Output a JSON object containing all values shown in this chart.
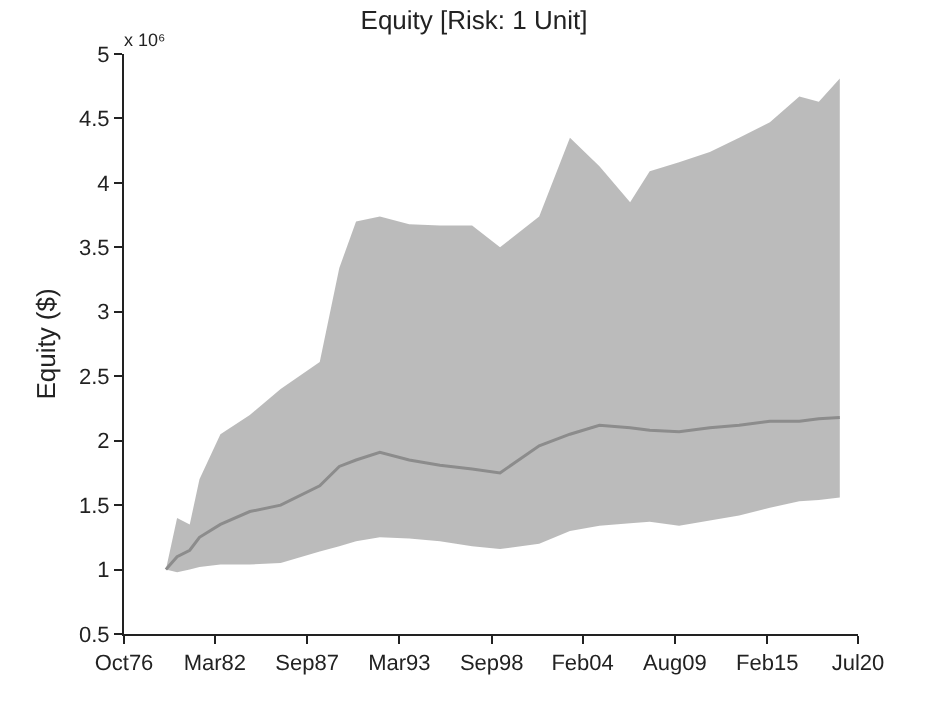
{
  "chart_data": {
    "type": "line",
    "title": "Equity [Risk: 1 Unit]",
    "ylabel": "Equity ($)",
    "annotations": [
      "x 10⁶"
    ],
    "x": [
      "1979-04",
      "1979-12",
      "1980-09",
      "1981-04",
      "1982-07",
      "1984-04",
      "1986-02",
      "1988-06",
      "1989-08",
      "1990-08",
      "1992-01",
      "1993-10",
      "1995-08",
      "1997-07",
      "1999-03",
      "2001-07",
      "2003-05",
      "2005-02",
      "2006-12",
      "2008-02",
      "2009-11",
      "2011-09",
      "2013-06",
      "2015-04",
      "2017-01",
      "2018-03",
      "2019-06"
    ],
    "series": [
      {
        "color": "#8c8c8c",
        "values": [
          1.0,
          1.1,
          1.15,
          1.25,
          1.35,
          1.45,
          1.5,
          1.65,
          1.8,
          1.85,
          1.91,
          1.85,
          1.81,
          1.78,
          1.75,
          1.96,
          2.05,
          2.12,
          2.1,
          2.08,
          2.07,
          2.1,
          2.12,
          2.15,
          2.15,
          2.17,
          2.18
        ],
        "lower": [
          1.0,
          0.98,
          1.0,
          1.02,
          1.04,
          1.04,
          1.05,
          1.14,
          1.18,
          1.22,
          1.25,
          1.24,
          1.22,
          1.18,
          1.16,
          1.2,
          1.3,
          1.34,
          1.36,
          1.37,
          1.34,
          1.38,
          1.42,
          1.48,
          1.53,
          1.54,
          1.56
        ],
        "upper": [
          1.0,
          1.4,
          1.35,
          1.7,
          2.05,
          2.2,
          2.4,
          2.61,
          3.34,
          3.7,
          3.74,
          3.68,
          3.67,
          3.67,
          3.5,
          3.74,
          4.35,
          4.13,
          3.85,
          4.09,
          4.16,
          4.24,
          4.35,
          4.47,
          4.67,
          4.63,
          4.81
        ]
      }
    ],
    "xlim": [
      "1976-10",
      "2020-07"
    ],
    "xticks": [
      {
        "value": "1976-10",
        "label": "Oct76"
      },
      {
        "value": "1982-03",
        "label": "Mar82"
      },
      {
        "value": "1987-09",
        "label": "Sep87"
      },
      {
        "value": "1993-03",
        "label": "Mar93"
      },
      {
        "value": "1998-09",
        "label": "Sep98"
      },
      {
        "value": "2004-02",
        "label": "Feb04"
      },
      {
        "value": "2009-08",
        "label": "Aug09"
      },
      {
        "value": "2015-02",
        "label": "Feb15"
      },
      {
        "value": "2020-07",
        "label": "Jul20"
      }
    ],
    "ylim": [
      0.5,
      5
    ],
    "yticks": [
      0.5,
      1,
      1.5,
      2,
      2.5,
      3,
      3.5,
      4,
      4.5,
      5
    ],
    "marker": "none",
    "line_style": "solid"
  }
}
